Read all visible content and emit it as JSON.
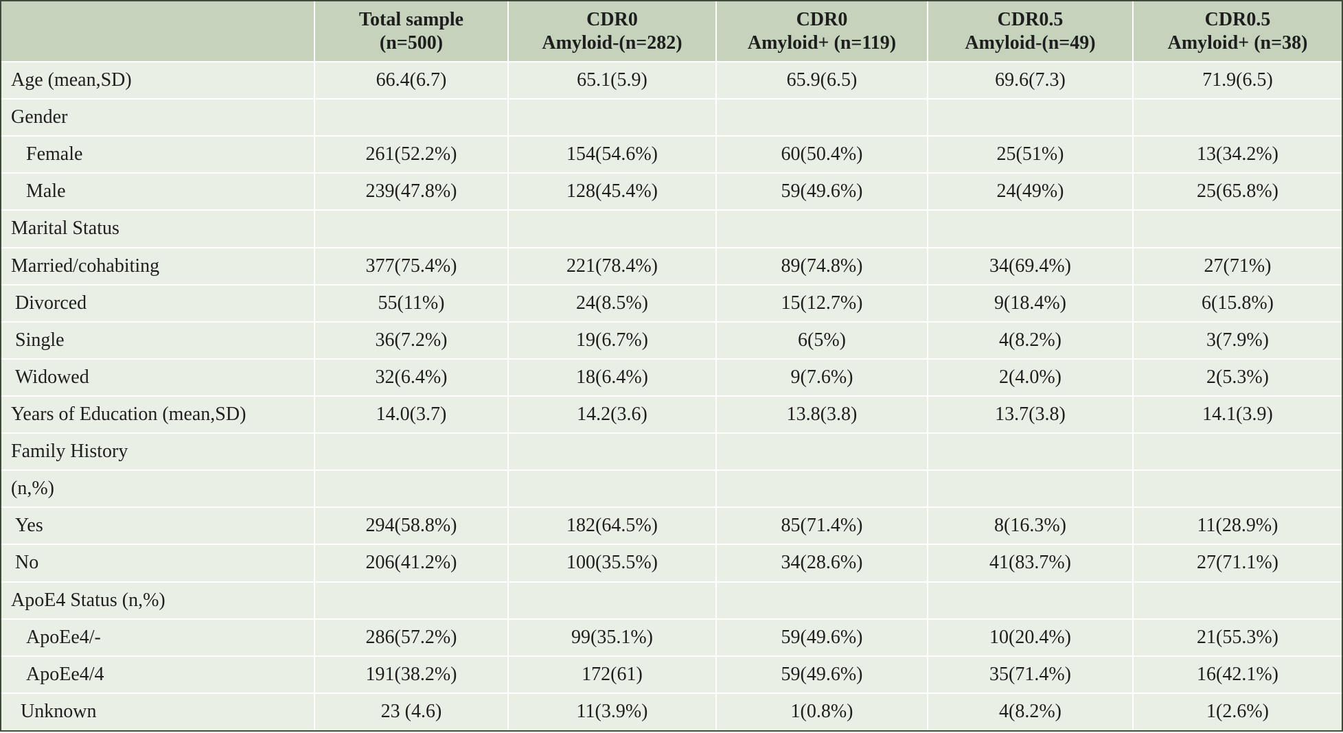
{
  "headers": [
    {
      "line1": "",
      "line2": ""
    },
    {
      "line1": "Total sample",
      "line2": "(n=500)"
    },
    {
      "line1": "CDR0",
      "line2": "Amyloid-(n=282)"
    },
    {
      "line1": "CDR0",
      "line2": "Amyloid+ (n=119)"
    },
    {
      "line1": "CDR0.5",
      "line2": "Amyloid-(n=49)"
    },
    {
      "line1": "CDR0.5",
      "line2": "Amyloid+ (n=38)"
    }
  ],
  "rows": [
    {
      "label": "Age (mean,SD)",
      "indent": 0,
      "cells": [
        "66.4(6.7)",
        "65.1(5.9)",
        "65.9(6.5)",
        "69.6(7.3)",
        "71.9(6.5)"
      ]
    },
    {
      "label": "Gender",
      "indent": 0,
      "cells": [
        "",
        "",
        "",
        "",
        ""
      ]
    },
    {
      "label": "Female",
      "indent": 1,
      "cells": [
        "261(52.2%)",
        "154(54.6%)",
        "60(50.4%)",
        "25(51%)",
        "13(34.2%)"
      ]
    },
    {
      "label": "Male",
      "indent": 1,
      "cells": [
        "239(47.8%)",
        "128(45.4%)",
        "59(49.6%)",
        "24(49%)",
        "25(65.8%)"
      ]
    },
    {
      "label": "Marital Status",
      "indent": 0,
      "cells": [
        "",
        "",
        "",
        "",
        ""
      ]
    },
    {
      "label": "Married/cohabiting",
      "indent": 0,
      "cells": [
        "377(75.4%)",
        "221(78.4%)",
        "89(74.8%)",
        "34(69.4%)",
        "27(71%)"
      ]
    },
    {
      "label": "Divorced",
      "indent": 2,
      "cells": [
        "55(11%)",
        "24(8.5%)",
        "15(12.7%)",
        "9(18.4%)",
        "6(15.8%)"
      ]
    },
    {
      "label": "Single",
      "indent": 2,
      "cells": [
        "36(7.2%)",
        "19(6.7%)",
        "6(5%)",
        "4(8.2%)",
        "3(7.9%)"
      ]
    },
    {
      "label": "Widowed",
      "indent": 2,
      "cells": [
        "32(6.4%)",
        "18(6.4%)",
        "9(7.6%)",
        "2(4.0%)",
        "2(5.3%)"
      ]
    },
    {
      "label": "Years of Education (mean,SD)",
      "indent": 0,
      "cells": [
        "14.0(3.7)",
        "14.2(3.6)",
        "13.8(3.8)",
        "13.7(3.8)",
        "14.1(3.9)"
      ]
    },
    {
      "label": "Family History",
      "indent": 0,
      "cells": [
        "",
        "",
        "",
        "",
        ""
      ]
    },
    {
      "label": "(n,%)",
      "indent": 0,
      "cells": [
        "",
        "",
        "",
        "",
        ""
      ]
    },
    {
      "label": "Yes",
      "indent": 2,
      "cells": [
        "294(58.8%)",
        "182(64.5%)",
        "85(71.4%)",
        "8(16.3%)",
        "11(28.9%)"
      ]
    },
    {
      "label": "No",
      "indent": 2,
      "cells": [
        "206(41.2%)",
        "100(35.5%)",
        "34(28.6%)",
        "41(83.7%)",
        "27(71.1%)"
      ]
    },
    {
      "label": "ApoE4 Status (n,%)",
      "indent": 0,
      "cells": [
        "",
        "",
        "",
        "",
        ""
      ]
    },
    {
      "label": "ApoEe4/-",
      "indent": 1,
      "cells": [
        "286(57.2%)",
        "99(35.1%)",
        "59(49.6%)",
        "10(20.4%)",
        "21(55.3%)"
      ]
    },
    {
      "label": "ApoEe4/4",
      "indent": 1,
      "cells": [
        "191(38.2%)",
        "172(61)",
        "59(49.6%)",
        "35(71.4%)",
        "16(42.1%)"
      ]
    },
    {
      "label": "Unknown",
      "indent": 3,
      "cells": [
        "23 (4.6)",
        "11(3.9%)",
        "1(0.8%)",
        "4(8.2%)",
        "1(2.6%)"
      ]
    }
  ]
}
